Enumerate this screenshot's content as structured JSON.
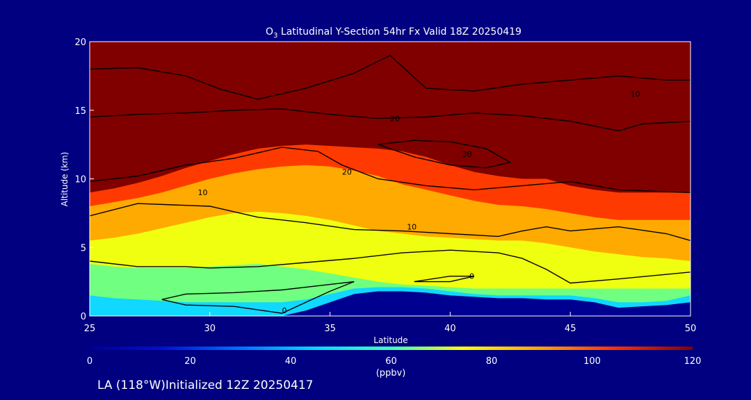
{
  "chart_data": {
    "type": "heatmap",
    "title_main": "O",
    "title_sub": "3",
    "title_rest": " Latitudinal Y-Section 54hr  Fx Valid 18Z 20250419",
    "xlabel": "Latitude",
    "ylabel": "Altitude (km)",
    "xlim": [
      25,
      50
    ],
    "ylim": [
      0,
      20
    ],
    "x_ticks": [
      25,
      30,
      35,
      40,
      45,
      50
    ],
    "y_ticks": [
      0,
      5,
      10,
      15,
      20
    ],
    "colorbar": {
      "ticks": [
        0,
        20,
        40,
        60,
        80,
        100,
        120
      ],
      "range": [
        0,
        120
      ],
      "units": "(ppbv)"
    },
    "boundaries": {
      "lat": [
        25,
        26,
        27,
        28,
        29,
        30,
        31,
        32,
        33,
        34,
        35,
        36,
        37,
        38,
        39,
        40,
        41,
        42,
        43,
        44,
        45,
        46,
        47,
        48,
        49,
        50
      ],
      "high": [
        9.0,
        9.3,
        9.7,
        10.2,
        10.8,
        11.3,
        11.8,
        12.2,
        12.4,
        12.5,
        12.4,
        12.3,
        12.2,
        12.0,
        11.6,
        11.0,
        10.5,
        10.2,
        10.0,
        10.0,
        9.5,
        9.2,
        9.0,
        9.0,
        9.0,
        9.0
      ],
      "orange": [
        8.0,
        8.3,
        8.6,
        9.0,
        9.5,
        10.0,
        10.4,
        10.7,
        10.9,
        11.0,
        10.9,
        10.6,
        10.2,
        9.6,
        9.2,
        8.8,
        8.4,
        8.1,
        8.0,
        7.8,
        7.5,
        7.2,
        7.0,
        7.0,
        7.0,
        7.0
      ],
      "yellow": [
        5.5,
        5.7,
        6.0,
        6.4,
        6.8,
        7.2,
        7.5,
        7.6,
        7.5,
        7.3,
        7.0,
        6.6,
        6.2,
        6.0,
        5.8,
        5.7,
        5.6,
        5.5,
        5.5,
        5.3,
        5.0,
        4.7,
        4.5,
        4.3,
        4.2,
        4.0
      ],
      "green": [
        3.8,
        3.6,
        3.5,
        3.5,
        3.5,
        3.6,
        3.7,
        3.8,
        3.6,
        3.4,
        3.1,
        2.8,
        2.5,
        2.3,
        2.2,
        2.1,
        2.0,
        2.0,
        2.0,
        2.0,
        2.0,
        2.0,
        2.0,
        2.0,
        2.0,
        2.0
      ],
      "cyan": [
        1.5,
        1.3,
        1.2,
        1.1,
        1.0,
        1.0,
        1.0,
        1.0,
        1.0,
        1.2,
        1.6,
        2.0,
        2.1,
        2.1,
        2.0,
        1.8,
        1.6,
        1.5,
        1.5,
        1.5,
        1.5,
        1.3,
        1.0,
        1.0,
        1.1,
        1.5
      ],
      "terrain": [
        0.0,
        0.0,
        0.0,
        0.0,
        0.0,
        0.0,
        0.0,
        0.0,
        0.0,
        0.4,
        1.0,
        1.6,
        1.8,
        1.8,
        1.7,
        1.5,
        1.4,
        1.3,
        1.3,
        1.2,
        1.2,
        1.0,
        0.6,
        0.7,
        0.8,
        1.0
      ]
    },
    "contours": [
      {
        "label": "10",
        "label_pos": [
          29.5,
          8.8
        ],
        "points": [
          [
            25,
            7.3
          ],
          [
            27,
            8.2
          ],
          [
            30,
            8.0
          ],
          [
            32,
            7.2
          ],
          [
            34,
            6.8
          ],
          [
            36,
            6.3
          ],
          [
            38,
            6.2
          ],
          [
            40,
            6.0
          ],
          [
            42,
            5.8
          ],
          [
            43,
            6.2
          ],
          [
            44,
            6.5
          ],
          [
            45,
            6.2
          ],
          [
            47,
            6.5
          ],
          [
            49,
            6.0
          ],
          [
            50,
            5.5
          ]
        ]
      },
      {
        "label": "10",
        "label_pos": [
          38.2,
          6.3
        ],
        "points": [
          [
            25,
            4.0
          ],
          [
            27,
            3.6
          ],
          [
            29,
            3.6
          ],
          [
            30,
            3.5
          ],
          [
            32,
            3.6
          ],
          [
            34,
            3.9
          ],
          [
            36,
            4.2
          ],
          [
            38,
            4.6
          ],
          [
            40,
            4.8
          ],
          [
            42,
            4.6
          ],
          [
            43,
            4.2
          ],
          [
            44,
            3.4
          ],
          [
            45,
            2.4
          ],
          [
            47,
            2.7
          ],
          [
            50,
            3.2
          ]
        ]
      },
      {
        "label": "20",
        "label_pos": [
          35.5,
          10.3
        ],
        "points": [
          [
            25,
            9.8
          ],
          [
            27,
            10.2
          ],
          [
            29,
            11.0
          ],
          [
            31,
            11.5
          ],
          [
            33,
            12.3
          ],
          [
            34.5,
            12.0
          ],
          [
            35.5,
            11.0
          ],
          [
            37,
            10.0
          ],
          [
            39,
            9.5
          ],
          [
            41,
            9.2
          ],
          [
            43,
            9.5
          ],
          [
            45,
            9.8
          ],
          [
            47,
            9.2
          ],
          [
            50,
            9.0
          ]
        ]
      },
      {
        "label": "20",
        "label_pos": [
          37.5,
          14.2
        ],
        "points": [
          [
            25,
            14.5
          ],
          [
            27,
            14.7
          ],
          [
            29,
            14.8
          ],
          [
            31,
            15.0
          ],
          [
            33,
            15.1
          ],
          [
            35,
            14.7
          ],
          [
            37,
            14.4
          ],
          [
            39,
            14.5
          ],
          [
            41,
            14.8
          ],
          [
            43,
            14.6
          ],
          [
            45,
            14.2
          ],
          [
            47,
            13.5
          ],
          [
            48,
            14.0
          ],
          [
            50,
            14.2
          ]
        ]
      },
      {
        "label": "10",
        "label_pos": [
          47.5,
          16.0
        ],
        "points": [
          [
            25,
            18.0
          ],
          [
            27,
            18.1
          ],
          [
            29,
            17.5
          ],
          [
            30.5,
            16.5
          ],
          [
            32,
            15.8
          ],
          [
            34,
            16.6
          ],
          [
            36,
            17.7
          ],
          [
            37.5,
            19.0
          ],
          [
            39,
            16.6
          ],
          [
            41,
            16.4
          ],
          [
            43,
            16.9
          ],
          [
            45,
            17.2
          ],
          [
            47,
            17.5
          ],
          [
            49,
            17.2
          ],
          [
            50,
            17.2
          ]
        ]
      },
      {
        "label": "30",
        "label_pos": [
          40.5,
          11.6
        ],
        "points": [
          [
            37,
            12.5
          ],
          [
            38.5,
            12.8
          ],
          [
            40,
            12.7
          ],
          [
            41.5,
            12.2
          ],
          [
            42.5,
            11.2
          ],
          [
            41.5,
            10.8
          ],
          [
            40,
            11.0
          ],
          [
            38.5,
            11.6
          ],
          [
            37,
            12.5
          ]
        ]
      },
      {
        "label": "0",
        "label_pos": [
          33.0,
          0.2
        ],
        "points": [
          [
            28,
            1.2
          ],
          [
            29,
            1.6
          ],
          [
            31,
            1.7
          ],
          [
            33,
            1.9
          ],
          [
            35,
            2.3
          ],
          [
            36,
            2.5
          ],
          [
            35,
            1.8
          ],
          [
            34,
            1.0
          ],
          [
            33,
            0.2
          ],
          [
            31,
            0.7
          ],
          [
            29,
            0.8
          ],
          [
            28,
            1.2
          ]
        ]
      },
      {
        "label": "0",
        "label_pos": [
          40.8,
          2.7
        ],
        "points": [
          [
            38.5,
            2.5
          ],
          [
            40,
            2.9
          ],
          [
            41,
            2.9
          ],
          [
            40,
            2.5
          ],
          [
            38.5,
            2.5
          ]
        ]
      }
    ],
    "footer": "LA (118°W)Initialized 12Z 20250417"
  }
}
